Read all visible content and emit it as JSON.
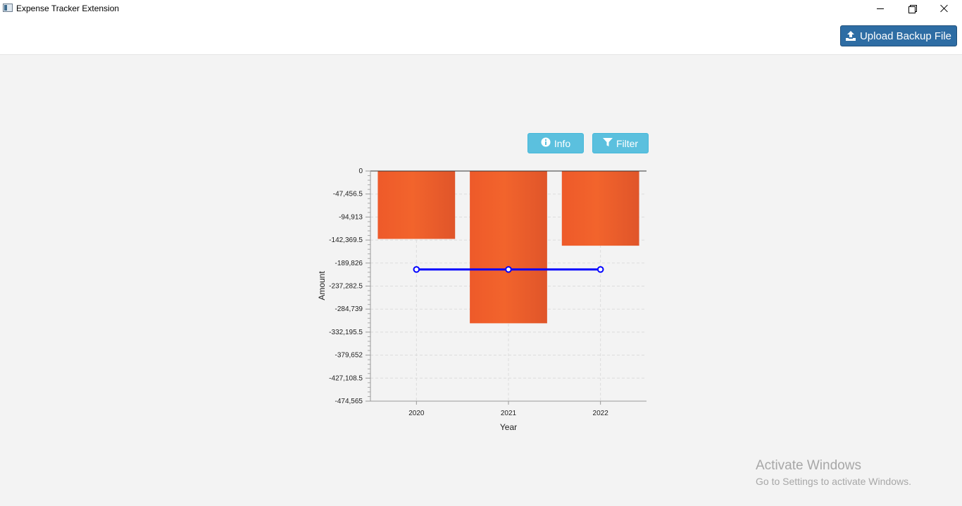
{
  "window": {
    "title": "Expense Tracker Extension"
  },
  "header": {
    "upload_label": "Upload Backup File"
  },
  "toolbar": {
    "info_label": "Info",
    "filter_label": "Filter"
  },
  "chart_data": {
    "type": "bar",
    "categories": [
      "2020",
      "2021",
      "2022"
    ],
    "series": [
      {
        "type": "bar",
        "values": [
          -140000,
          -314000,
          -154000
        ],
        "color": "#f0602a"
      },
      {
        "type": "line",
        "values": [
          -203000,
          -203000,
          -203000
        ],
        "color": "#0000ff"
      }
    ],
    "xlabel": "Year",
    "ylabel": "Amount",
    "ylim": [
      -474565,
      0
    ],
    "yticks": [
      "0",
      "-47,456.5",
      "-94,913",
      "-142,369.5",
      "-189,826",
      "-237,282.5",
      "-284,739",
      "-332,195.5",
      "-379,652",
      "-427,108.5",
      "-474,565"
    ],
    "grid": true
  },
  "watermark": {
    "title": "Activate Windows",
    "subtitle": "Go to Settings to activate Windows."
  }
}
